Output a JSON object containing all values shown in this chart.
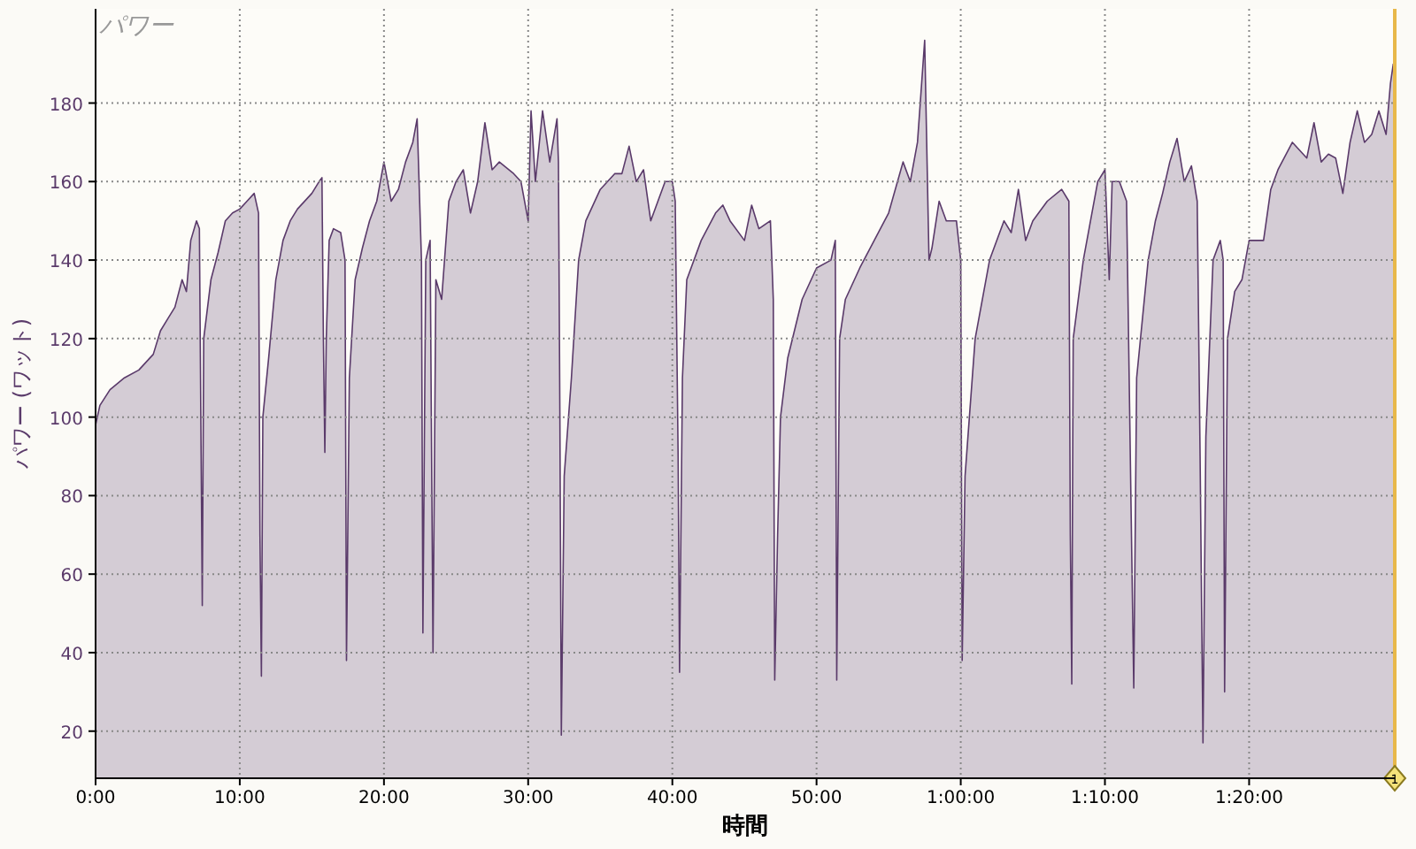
{
  "chart_data": {
    "type": "area",
    "title": "パワー",
    "xlabel": "時間",
    "ylabel": "パワー (ワット)",
    "color": "#5a3a6a",
    "grid": true,
    "xlim": [
      0,
      90.1
    ],
    "ylim": [
      8,
      204
    ],
    "xticks": [
      {
        "value": 0,
        "label": "0:00"
      },
      {
        "value": 10,
        "label": "10:00"
      },
      {
        "value": 20,
        "label": "20:00"
      },
      {
        "value": 30,
        "label": "30:00"
      },
      {
        "value": 40,
        "label": "40:00"
      },
      {
        "value": 50,
        "label": "50:00"
      },
      {
        "value": 60,
        "label": "1:00:00"
      },
      {
        "value": 70,
        "label": "1:10:00"
      },
      {
        "value": 80,
        "label": "1:20:00"
      }
    ],
    "yticks": [
      20,
      40,
      60,
      80,
      100,
      120,
      140,
      160,
      180
    ],
    "ref_lines": [
      {
        "axis": "x",
        "value": 90.1,
        "color": "#e8b84a"
      }
    ],
    "annotations": [
      {
        "text": "1",
        "x": 90.1,
        "y": 8
      }
    ],
    "x": [
      0,
      0.3,
      1,
      2,
      3,
      4,
      4.5,
      5,
      5.5,
      6,
      6.3,
      6.6,
      7,
      7.2,
      7.3,
      7.4,
      7.5,
      8,
      8.5,
      9,
      9.5,
      10,
      10.5,
      11,
      11.3,
      11.4,
      11.5,
      11.6,
      12,
      12.5,
      13,
      13.5,
      14,
      15,
      15.5,
      15.7,
      15.8,
      15.9,
      16,
      16.2,
      16.5,
      17,
      17.3,
      17.4,
      17.6,
      18,
      18.5,
      19,
      19.5,
      20,
      20.5,
      21,
      21.5,
      22,
      22.3,
      22.6,
      22.7,
      22.9,
      23.2,
      23.4,
      23.6,
      24,
      24.5,
      25,
      25.5,
      26,
      26.5,
      27,
      27.5,
      28,
      29,
      29.5,
      30,
      30.2,
      30.5,
      31,
      31.5,
      32,
      32.1,
      32.2,
      32.3,
      32.5,
      33,
      33.5,
      34,
      35,
      36,
      36.5,
      37,
      37.5,
      38,
      38.5,
      39,
      39.5,
      40,
      40.2,
      40.4,
      40.5,
      40.7,
      41,
      42,
      43,
      43.5,
      44,
      45,
      45.5,
      46,
      46.8,
      47,
      47.1,
      47.3,
      47.5,
      48,
      49,
      50,
      51,
      51.3,
      51.4,
      51.6,
      52,
      53,
      54,
      55,
      56,
      56.5,
      57,
      57.5,
      57.8,
      58,
      58.5,
      59,
      59.7,
      60,
      60.1,
      60.3,
      61,
      62,
      63,
      63.5,
      64,
      64.5,
      65,
      66,
      67,
      67.5,
      67.6,
      67.7,
      67.8,
      68.5,
      69,
      69.5,
      70,
      70.3,
      70.5,
      71,
      71.5,
      71.8,
      72,
      72.2,
      73,
      73.5,
      74,
      74.5,
      75,
      75.5,
      76,
      76.4,
      76.6,
      76.8,
      77,
      77.5,
      78,
      78.2,
      78.3,
      78.5,
      79,
      79.5,
      80,
      81,
      81.5,
      82,
      83,
      84,
      84.5,
      85,
      85.5,
      86,
      86.5,
      87,
      87.5,
      88,
      88.5,
      89,
      89.5,
      89.8,
      90
    ],
    "values": [
      98,
      103,
      107,
      110,
      112,
      116,
      122,
      125,
      128,
      135,
      132,
      145,
      150,
      148,
      100,
      52,
      120,
      135,
      142,
      150,
      152,
      153,
      155,
      157,
      152,
      70,
      34,
      100,
      115,
      135,
      145,
      150,
      153,
      157,
      160,
      161,
      120,
      91,
      120,
      145,
      148,
      147,
      140,
      38,
      110,
      135,
      143,
      150,
      155,
      165,
      155,
      158,
      165,
      170,
      176,
      140,
      45,
      140,
      145,
      40,
      135,
      130,
      155,
      160,
      163,
      152,
      160,
      175,
      163,
      165,
      162,
      160,
      150,
      178,
      160,
      178,
      165,
      176,
      165,
      100,
      19,
      85,
      110,
      140,
      150,
      158,
      162,
      162,
      169,
      160,
      163,
      150,
      155,
      160,
      160,
      155,
      90,
      35,
      110,
      135,
      145,
      152,
      154,
      150,
      145,
      154,
      148,
      150,
      130,
      33,
      70,
      100,
      115,
      130,
      138,
      140,
      145,
      33,
      120,
      130,
      138,
      145,
      152,
      165,
      160,
      170,
      196,
      140,
      143,
      155,
      150,
      150,
      140,
      38,
      85,
      120,
      140,
      150,
      147,
      158,
      145,
      150,
      155,
      158,
      155,
      70,
      32,
      120,
      140,
      150,
      160,
      163,
      135,
      160,
      160,
      155,
      80,
      31,
      110,
      140,
      150,
      157,
      165,
      171,
      160,
      164,
      155,
      90,
      17,
      95,
      140,
      145,
      140,
      30,
      120,
      132,
      135,
      145,
      145,
      158,
      163,
      170,
      166,
      175,
      165,
      167,
      166,
      157,
      170,
      178,
      170,
      172,
      178,
      172,
      185,
      190
    ]
  }
}
